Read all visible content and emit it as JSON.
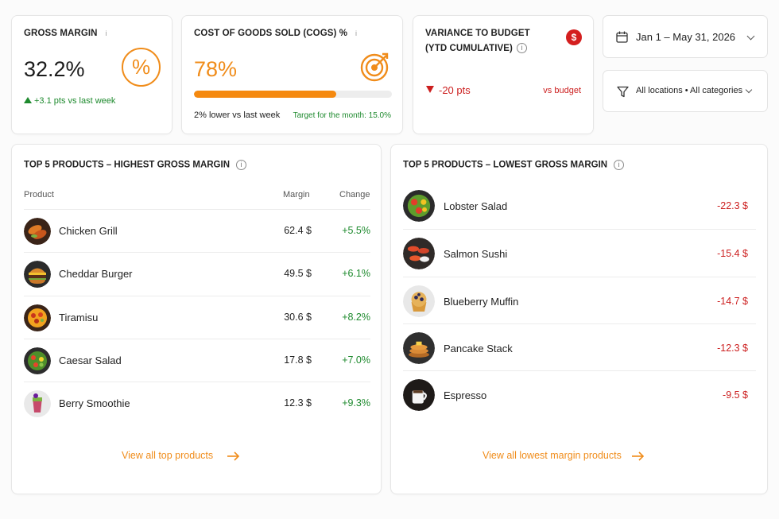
{
  "kpis": {
    "gross_margin": {
      "title": "GROSS MARGIN",
      "info": "i",
      "value": "32.2%",
      "icon": "percent-icon",
      "delta": "+3.1 pts vs last week"
    },
    "cogs": {
      "title": "COST OF GOODS SOLD (COGS) %",
      "info": "i",
      "value": "78%",
      "icon": "target-icon",
      "progress": 0.72,
      "note": "2% lower vs last week",
      "target": "Target for the month: 15.0%"
    },
    "variance": {
      "title_line1": "VARIANCE TO BUDGET",
      "title_line2": "(YTD CUMULATIVE)",
      "info": "i",
      "value": "-20 pts",
      "label": "vs budget",
      "icon": "dollar-badge-icon"
    }
  },
  "filters": {
    "date_range": "Jan 1 – May 31, 2026",
    "scope": "All locations • All categories"
  },
  "top_products": {
    "title": "TOP 5 PRODUCTS – HIGHEST GROSS MARGIN",
    "info": "i",
    "columns": {
      "product": "Product",
      "margin": "Margin",
      "change": "Change"
    },
    "rows": [
      {
        "name": "Chicken Grill",
        "margin": "62.4 $",
        "change": "+5.5%",
        "icon": "chicken-grill-icon"
      },
      {
        "name": "Cheddar Burger",
        "margin": "49.5 $",
        "change": "+6.1%",
        "icon": "burger-icon"
      },
      {
        "name": "Tiramisu",
        "margin": "30.6 $",
        "change": "+8.2%",
        "icon": "tiramisu-icon"
      },
      {
        "name": "Caesar Salad",
        "margin": "17.8 $",
        "change": "+7.0%",
        "icon": "salad-icon"
      },
      {
        "name": "Berry Smoothie",
        "margin": "12.3 $",
        "change": "+9.3%",
        "icon": "smoothie-icon"
      }
    ],
    "view_all": "View all top products"
  },
  "low_products": {
    "title": "TOP 5 PRODUCTS – LOWEST GROSS MARGIN",
    "info": "i",
    "rows": [
      {
        "name": "Lobster Salad",
        "margin": "-22.3 $",
        "icon": "lobster-salad-icon"
      },
      {
        "name": "Salmon Sushi",
        "margin": "-15.4 $",
        "icon": "sushi-icon"
      },
      {
        "name": "Blueberry Muffin",
        "margin": "-14.7 $",
        "icon": "muffin-icon"
      },
      {
        "name": "Pancake Stack",
        "margin": "-12.3 $",
        "icon": "pancake-icon"
      },
      {
        "name": "Espresso",
        "margin": "-9.5 $",
        "icon": "espresso-icon"
      }
    ],
    "view_all": "View all lowest margin products"
  },
  "colors": {
    "accent": "#f08c1a",
    "positive": "#1e8a2e",
    "negative": "#cc1f1f"
  }
}
